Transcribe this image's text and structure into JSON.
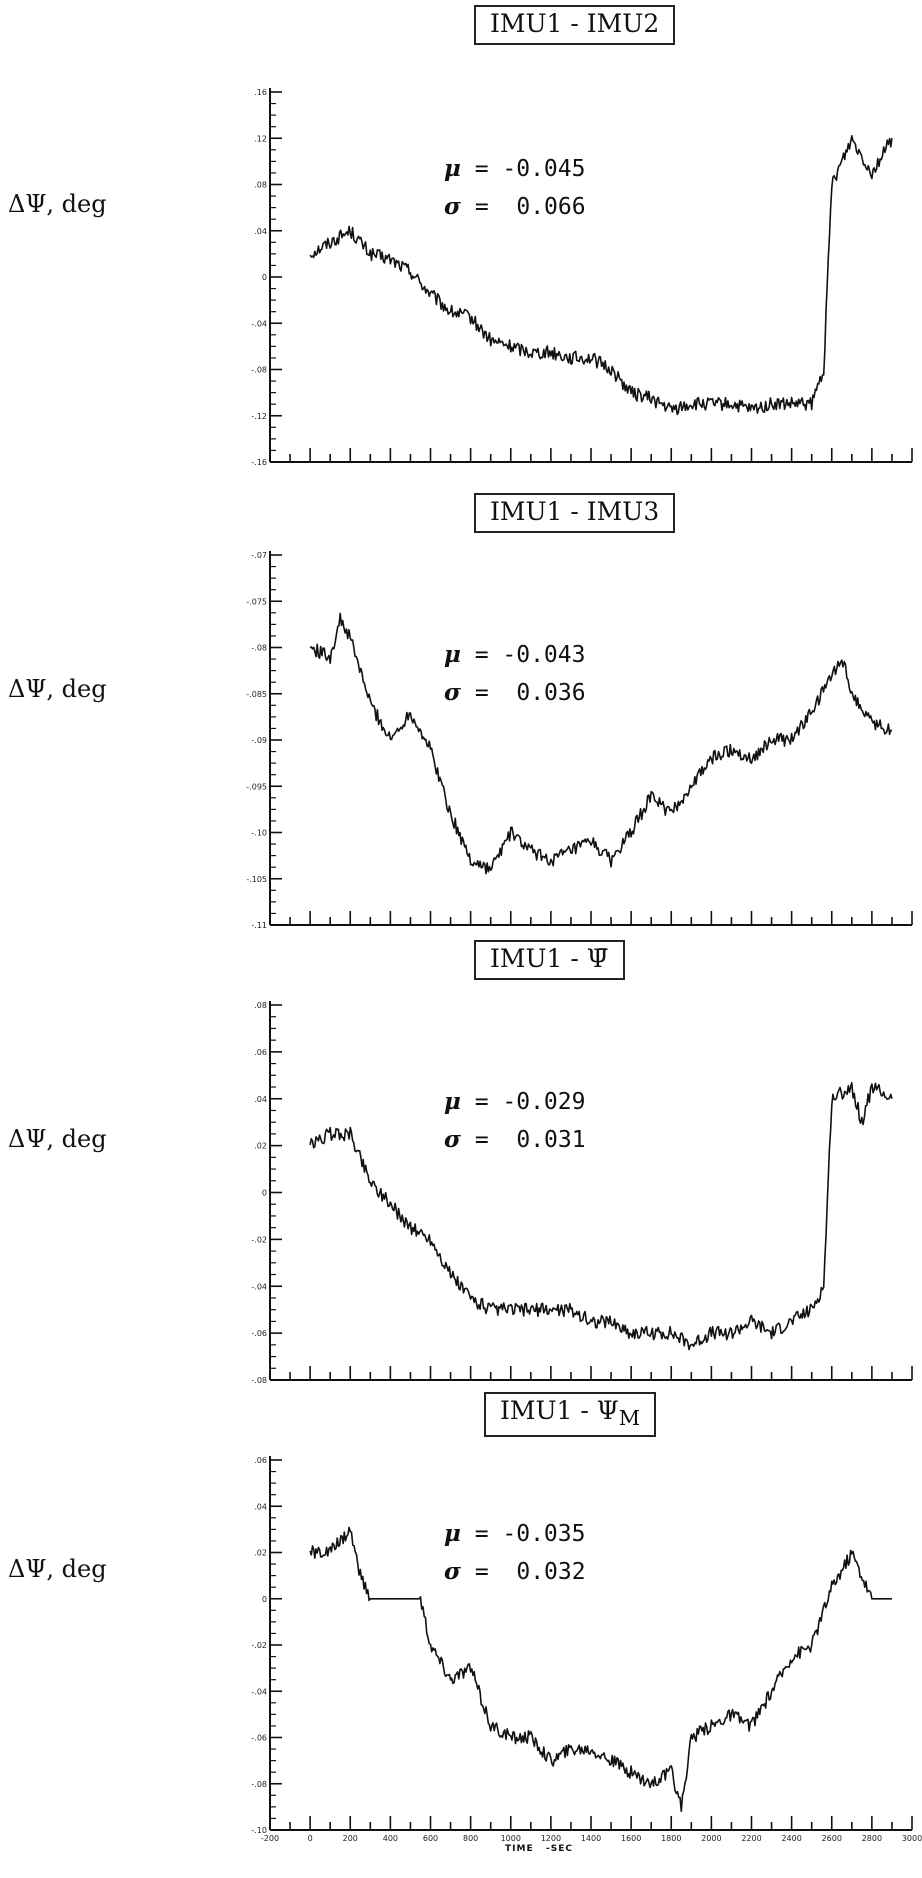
{
  "chart_data": [
    {
      "type": "line",
      "title": "IMU1 - IMU2",
      "ylabel": "ΔΨ, deg",
      "stats": {
        "mu_label": "μ",
        "mu_value": "-0.045",
        "sigma_label": "σ",
        "sigma_value": "0.066"
      },
      "xlim": [
        -200,
        3000
      ],
      "ylim": [
        -0.16,
        0.16
      ],
      "y_ticks": [
        -0.16,
        -0.12,
        -0.08,
        -0.04,
        0,
        0.04,
        0.08,
        0.12,
        0.16
      ],
      "y_tick_labels": [
        "-.16",
        "-.12",
        "-.08",
        "-.04",
        "0",
        ".04",
        ".08",
        ".12",
        ".16"
      ],
      "series": [
        {
          "x": [
            0,
            100,
            200,
            300,
            400,
            500,
            600,
            700,
            800,
            900,
            1000,
            1100,
            1200,
            1300,
            1400,
            1500,
            1600,
            1700,
            1800,
            1900,
            2000,
            2100,
            2200,
            2300,
            2400,
            2500,
            2560,
            2600,
            2700,
            2800,
            2900
          ],
          "y": [
            0.02,
            0.03,
            0.04,
            0.02,
            0.015,
            0.005,
            -0.015,
            -0.03,
            -0.035,
            -0.055,
            -0.06,
            -0.065,
            -0.065,
            -0.07,
            -0.07,
            -0.08,
            -0.1,
            -0.105,
            -0.115,
            -0.11,
            -0.11,
            -0.11,
            -0.115,
            -0.11,
            -0.11,
            -0.11,
            -0.08,
            0.08,
            0.12,
            0.09,
            0.12
          ]
        }
      ]
    },
    {
      "type": "line",
      "title": "IMU1 - IMU3",
      "ylabel": "ΔΨ, deg",
      "stats": {
        "mu_label": "μ",
        "mu_value": "-0.043",
        "sigma_label": "σ",
        "sigma_value": "0.036"
      },
      "xlim": [
        -200,
        3000
      ],
      "ylim": [
        -0.11,
        -0.07
      ],
      "y_ticks": [
        -0.11,
        -0.105,
        -0.1,
        -0.095,
        -0.09,
        -0.085,
        -0.08,
        -0.075,
        -0.07
      ],
      "y_tick_labels": [
        "-.11",
        "-.105",
        "-.10",
        "-.095",
        "-.09",
        "-.085",
        "-.08",
        "-.075",
        "-.07"
      ],
      "series": [
        {
          "x": [
            0,
            100,
            150,
            200,
            300,
            400,
            500,
            600,
            700,
            800,
            900,
            1000,
            1100,
            1200,
            1300,
            1400,
            1500,
            1600,
            1700,
            1800,
            1900,
            2000,
            2100,
            2200,
            2300,
            2400,
            2500,
            2600,
            2650,
            2700,
            2800,
            2900
          ],
          "y": [
            -0.08,
            -0.081,
            -0.077,
            -0.079,
            -0.086,
            -0.09,
            -0.087,
            -0.091,
            -0.098,
            -0.103,
            -0.104,
            -0.1,
            -0.102,
            -0.103,
            -0.102,
            -0.101,
            -0.103,
            -0.1,
            -0.096,
            -0.098,
            -0.095,
            -0.092,
            -0.091,
            -0.092,
            -0.09,
            -0.09,
            -0.087,
            -0.083,
            -0.081,
            -0.085,
            -0.088,
            -0.089
          ]
        }
      ]
    },
    {
      "type": "line",
      "title": "IMU1 - Ψ̄",
      "ylabel": "ΔΨ, deg",
      "stats": {
        "mu_label": "μ",
        "mu_value": "-0.029",
        "sigma_label": "σ",
        "sigma_value": "0.031"
      },
      "xlim": [
        -200,
        3000
      ],
      "ylim": [
        -0.08,
        0.08
      ],
      "y_ticks": [
        -0.08,
        -0.06,
        -0.04,
        -0.02,
        0,
        0.02,
        0.04,
        0.06,
        0.08
      ],
      "y_tick_labels": [
        "-.08",
        "-.06",
        "-.04",
        "-.02",
        "0",
        ".02",
        ".04",
        ".06",
        ".08"
      ],
      "series": [
        {
          "x": [
            0,
            100,
            200,
            300,
            400,
            500,
            600,
            700,
            800,
            900,
            1000,
            1100,
            1200,
            1300,
            1400,
            1500,
            1600,
            1700,
            1800,
            1900,
            2000,
            2100,
            2200,
            2300,
            2400,
            2500,
            2560,
            2600,
            2700,
            2750,
            2800,
            2900
          ],
          "y": [
            0.02,
            0.025,
            0.025,
            0.005,
            -0.005,
            -0.015,
            -0.02,
            -0.035,
            -0.045,
            -0.05,
            -0.05,
            -0.05,
            -0.05,
            -0.05,
            -0.055,
            -0.055,
            -0.06,
            -0.06,
            -0.06,
            -0.065,
            -0.06,
            -0.06,
            -0.055,
            -0.06,
            -0.055,
            -0.05,
            -0.04,
            0.04,
            0.045,
            0.03,
            0.045,
            0.04
          ]
        }
      ]
    },
    {
      "type": "line",
      "title": "IMU1 - Ψ",
      "title_subscript": "M",
      "ylabel": "ΔΨ, deg",
      "stats": {
        "mu_label": "μ",
        "mu_value": "-0.035",
        "sigma_label": "σ",
        "sigma_value": "0.032"
      },
      "xlabel": "TIME   -SEC",
      "xlim": [
        -200,
        3000
      ],
      "ylim": [
        -0.1,
        0.06
      ],
      "x_ticks": [
        -200,
        0,
        200,
        400,
        600,
        800,
        1000,
        1200,
        1400,
        1600,
        1800,
        2000,
        2200,
        2400,
        2600,
        2800,
        3000
      ],
      "x_tick_labels": [
        "-200",
        "0",
        "200",
        "400",
        "600",
        "800",
        "1000",
        "1200",
        "1400",
        "1600",
        "1800",
        "2000",
        "2200",
        "2400",
        "2600",
        "2800",
        "3000"
      ],
      "y_ticks": [
        -0.1,
        -0.08,
        -0.06,
        -0.04,
        -0.02,
        0,
        0.02,
        0.04,
        0.06
      ],
      "y_tick_labels": [
        "-.10",
        "-.08",
        "-.06",
        "-.04",
        "-.02",
        "0",
        ".02",
        ".04",
        ".06"
      ],
      "series": [
        {
          "x": [
            0,
            100,
            200,
            250,
            300,
            400,
            500,
            550,
            600,
            700,
            800,
            900,
            1000,
            1100,
            1200,
            1300,
            1400,
            1500,
            1600,
            1700,
            1800,
            1850,
            1900,
            2000,
            2100,
            2200,
            2300,
            2400,
            2500,
            2600,
            2700,
            2800,
            2900
          ],
          "y": [
            0.02,
            0.02,
            0.03,
            0.01,
            0,
            0,
            0,
            0,
            -0.02,
            -0.035,
            -0.03,
            -0.055,
            -0.06,
            -0.06,
            -0.07,
            -0.065,
            -0.065,
            -0.07,
            -0.075,
            -0.08,
            -0.075,
            -0.09,
            -0.06,
            -0.055,
            -0.05,
            -0.055,
            -0.04,
            -0.025,
            -0.02,
            0.005,
            0.02,
            0,
            0
          ]
        }
      ]
    }
  ]
}
